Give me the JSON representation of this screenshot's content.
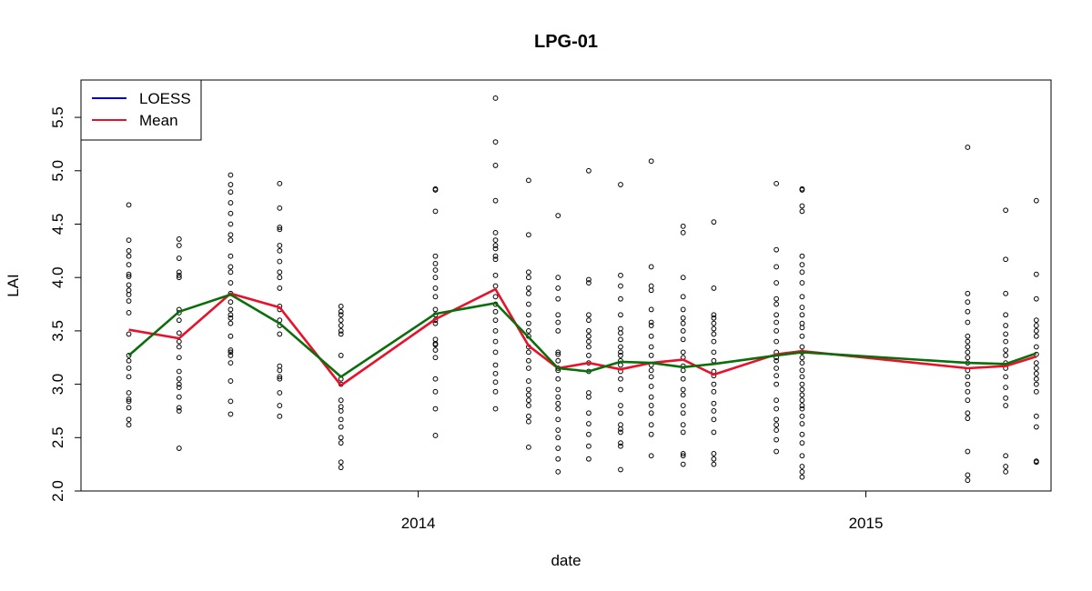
{
  "chart_data": {
    "type": "scatter",
    "title": "LPG-01",
    "xlabel": "date",
    "ylabel": "LAI",
    "xlim": [
      "2013-04-01",
      "2015-06-01"
    ],
    "ylim": [
      2.0,
      5.85
    ],
    "x_ticks": [
      "2014-01-01",
      "2015-01-01"
    ],
    "x_tick_labels": [
      "2014",
      "2015"
    ],
    "y_ticks": [
      2.0,
      2.5,
      3.0,
      3.5,
      4.0,
      4.5,
      5.0,
      5.5
    ],
    "y_tick_labels": [
      "2.0",
      "2.5",
      "3.0",
      "3.5",
      "4.0",
      "4.5",
      "5.0",
      "5.5"
    ],
    "grid": false,
    "legend_position": "top-left",
    "legend": [
      {
        "label": "LOESS",
        "color": "#0000ee"
      },
      {
        "label": "Mean",
        "color": "#e8102a"
      }
    ],
    "point_color": "#000000",
    "observations": [
      {
        "date": "2013-05-10",
        "values": [
          2.62,
          2.67,
          2.78,
          2.84,
          2.86,
          2.92,
          3.07,
          3.15,
          3.22,
          3.27,
          3.47,
          3.67,
          3.78,
          3.84,
          3.88,
          3.93,
          4.01,
          4.03,
          4.12,
          4.2,
          4.25,
          4.35,
          4.68
        ]
      },
      {
        "date": "2013-06-20",
        "values": [
          2.4,
          2.75,
          2.78,
          2.88,
          2.97,
          3.0,
          3.05,
          3.12,
          3.25,
          3.35,
          3.4,
          3.48,
          3.6,
          3.67,
          3.7,
          4.0,
          4.02,
          4.05,
          4.18,
          4.3,
          4.36
        ]
      },
      {
        "date": "2013-08-01",
        "values": [
          2.72,
          2.84,
          3.03,
          3.2,
          3.27,
          3.3,
          3.32,
          3.45,
          3.57,
          3.62,
          3.65,
          3.7,
          3.77,
          3.85,
          3.95,
          4.05,
          4.1,
          4.2,
          4.35,
          4.4,
          4.5,
          4.6,
          4.7,
          4.8,
          4.87,
          4.96
        ]
      },
      {
        "date": "2013-09-10",
        "values": [
          2.7,
          2.8,
          2.92,
          3.05,
          3.07,
          3.13,
          3.17,
          3.47,
          3.55,
          3.6,
          3.7,
          3.73,
          3.9,
          4.0,
          4.05,
          4.15,
          4.25,
          4.3,
          4.45,
          4.47,
          4.65,
          4.88
        ]
      },
      {
        "date": "2013-10-30",
        "values": [
          2.22,
          2.27,
          2.45,
          2.5,
          2.6,
          2.67,
          2.75,
          2.79,
          2.85,
          3.0,
          3.05,
          3.27,
          3.47,
          3.5,
          3.55,
          3.6,
          3.65,
          3.68,
          3.73
        ]
      },
      {
        "date": "2014-01-15",
        "values": [
          2.52,
          2.77,
          2.93,
          3.05,
          3.25,
          3.32,
          3.37,
          3.38,
          3.42,
          3.57,
          3.6,
          3.65,
          3.7,
          3.82,
          3.9,
          4.0,
          4.07,
          4.13,
          4.2,
          4.62,
          4.82,
          4.83
        ]
      },
      {
        "date": "2014-03-05",
        "values": [
          2.77,
          2.93,
          3.02,
          3.1,
          3.18,
          3.3,
          3.4,
          3.5,
          3.6,
          3.68,
          3.75,
          3.82,
          3.92,
          4.02,
          4.17,
          4.2,
          4.27,
          4.3,
          4.35,
          4.42,
          4.72,
          5.05,
          5.27,
          5.68
        ]
      },
      {
        "date": "2014-04-01",
        "values": [
          2.41,
          2.65,
          2.7,
          2.8,
          2.85,
          2.9,
          2.95,
          3.03,
          3.15,
          3.22,
          3.3,
          3.35,
          3.45,
          3.5,
          3.57,
          3.65,
          3.75,
          3.85,
          3.9,
          4.0,
          4.05,
          4.4,
          4.91
        ]
      },
      {
        "date": "2014-04-25",
        "values": [
          2.18,
          2.3,
          2.4,
          2.5,
          2.57,
          2.67,
          2.77,
          2.82,
          2.88,
          2.95,
          3.05,
          3.13,
          3.15,
          3.22,
          3.28,
          3.3,
          3.5,
          3.58,
          3.65,
          3.8,
          3.9,
          4.0,
          4.58
        ]
      },
      {
        "date": "2014-05-20",
        "values": [
          2.3,
          2.42,
          2.53,
          2.63,
          2.73,
          2.88,
          2.92,
          3.12,
          3.2,
          3.27,
          3.35,
          3.4,
          3.45,
          3.5,
          3.6,
          3.65,
          3.95,
          3.98,
          5.0
        ]
      },
      {
        "date": "2014-06-15",
        "values": [
          2.2,
          2.42,
          2.45,
          2.55,
          2.58,
          2.62,
          2.73,
          2.8,
          2.95,
          3.05,
          3.12,
          3.18,
          3.22,
          3.27,
          3.3,
          3.35,
          3.42,
          3.48,
          3.52,
          3.65,
          3.8,
          3.92,
          4.02,
          4.87
        ]
      },
      {
        "date": "2014-07-10",
        "values": [
          2.33,
          2.53,
          2.62,
          2.73,
          2.8,
          2.88,
          2.98,
          3.07,
          3.13,
          3.18,
          3.27,
          3.35,
          3.45,
          3.55,
          3.58,
          3.7,
          3.88,
          3.92,
          4.1,
          5.09
        ]
      },
      {
        "date": "2014-08-05",
        "values": [
          2.25,
          2.33,
          2.35,
          2.55,
          2.62,
          2.73,
          2.8,
          2.9,
          2.95,
          3.05,
          3.13,
          3.17,
          3.25,
          3.3,
          3.42,
          3.5,
          3.57,
          3.62,
          3.7,
          3.82,
          4.0,
          4.42,
          4.48
        ]
      },
      {
        "date": "2014-08-30",
        "values": [
          2.25,
          2.3,
          2.35,
          2.55,
          2.67,
          2.75,
          2.82,
          2.93,
          3.0,
          3.08,
          3.12,
          3.22,
          3.3,
          3.4,
          3.47,
          3.52,
          3.57,
          3.62,
          3.65,
          3.9,
          4.52
        ]
      },
      {
        "date": "2014-10-20",
        "values": [
          2.37,
          2.48,
          2.57,
          2.62,
          2.67,
          2.77,
          2.85,
          3.0,
          3.08,
          3.15,
          3.22,
          3.25,
          3.3,
          3.4,
          3.5,
          3.58,
          3.65,
          3.75,
          3.8,
          3.95,
          4.1,
          4.26,
          4.88
        ]
      },
      {
        "date": "2014-11-10",
        "values": [
          2.13,
          2.18,
          2.23,
          2.33,
          2.45,
          2.53,
          2.63,
          2.7,
          2.77,
          2.8,
          2.85,
          2.9,
          2.95,
          3.0,
          3.07,
          3.13,
          3.2,
          3.25,
          3.3,
          3.35,
          3.45,
          3.53,
          3.57,
          3.65,
          3.72,
          3.82,
          3.95,
          4.05,
          4.12,
          4.2,
          4.62,
          4.67,
          4.82,
          4.83
        ]
      },
      {
        "date": "2015-03-25",
        "values": [
          2.1,
          2.15,
          2.37,
          2.68,
          2.73,
          2.85,
          2.93,
          3.0,
          3.07,
          3.13,
          3.2,
          3.25,
          3.3,
          3.35,
          3.4,
          3.45,
          3.58,
          3.68,
          3.77,
          3.85,
          5.22
        ]
      },
      {
        "date": "2015-04-25",
        "values": [
          2.18,
          2.23,
          2.33,
          2.8,
          2.87,
          2.97,
          3.07,
          3.15,
          3.2,
          3.27,
          3.32,
          3.4,
          3.47,
          3.55,
          3.65,
          3.85,
          4.17,
          4.63
        ]
      },
      {
        "date": "2015-05-20",
        "values": [
          2.27,
          2.28,
          2.6,
          2.7,
          2.93,
          3.0,
          3.05,
          3.1,
          3.15,
          3.2,
          3.28,
          3.35,
          3.45,
          3.5,
          3.55,
          3.6,
          3.8,
          4.03,
          4.72
        ]
      }
    ],
    "series": [
      {
        "name": "Mean",
        "color": "#e8102a",
        "points": [
          {
            "x": "2013-05-10",
            "y": 3.51
          },
          {
            "x": "2013-06-20",
            "y": 3.43
          },
          {
            "x": "2013-08-01",
            "y": 3.85
          },
          {
            "x": "2013-09-10",
            "y": 3.72
          },
          {
            "x": "2013-10-30",
            "y": 2.99
          },
          {
            "x": "2014-01-15",
            "y": 3.61
          },
          {
            "x": "2014-03-05",
            "y": 3.89
          },
          {
            "x": "2014-04-01",
            "y": 3.36
          },
          {
            "x": "2014-04-25",
            "y": 3.15
          },
          {
            "x": "2014-05-20",
            "y": 3.2
          },
          {
            "x": "2014-06-15",
            "y": 3.14
          },
          {
            "x": "2014-07-10",
            "y": 3.2
          },
          {
            "x": "2014-08-05",
            "y": 3.23
          },
          {
            "x": "2014-08-30",
            "y": 3.09
          },
          {
            "x": "2014-10-20",
            "y": 3.28
          },
          {
            "x": "2014-11-10",
            "y": 3.31
          },
          {
            "x": "2015-03-25",
            "y": 3.15
          },
          {
            "x": "2015-04-25",
            "y": 3.17
          },
          {
            "x": "2015-05-20",
            "y": 3.26
          }
        ]
      },
      {
        "name": "",
        "color": "#0a6e0a",
        "points": [
          {
            "x": "2013-05-10",
            "y": 3.27
          },
          {
            "x": "2013-06-20",
            "y": 3.68
          },
          {
            "x": "2013-08-01",
            "y": 3.84
          },
          {
            "x": "2013-09-10",
            "y": 3.57
          },
          {
            "x": "2013-10-30",
            "y": 3.07
          },
          {
            "x": "2014-01-15",
            "y": 3.66
          },
          {
            "x": "2014-03-05",
            "y": 3.76
          },
          {
            "x": "2014-04-01",
            "y": 3.44
          },
          {
            "x": "2014-04-25",
            "y": 3.15
          },
          {
            "x": "2014-05-20",
            "y": 3.12
          },
          {
            "x": "2014-06-15",
            "y": 3.21
          },
          {
            "x": "2014-07-10",
            "y": 3.2
          },
          {
            "x": "2014-08-05",
            "y": 3.16
          },
          {
            "x": "2014-08-30",
            "y": 3.19
          },
          {
            "x": "2014-10-20",
            "y": 3.27
          },
          {
            "x": "2014-11-10",
            "y": 3.3
          },
          {
            "x": "2015-03-25",
            "y": 3.2
          },
          {
            "x": "2015-04-25",
            "y": 3.19
          },
          {
            "x": "2015-05-20",
            "y": 3.29
          }
        ]
      }
    ]
  }
}
